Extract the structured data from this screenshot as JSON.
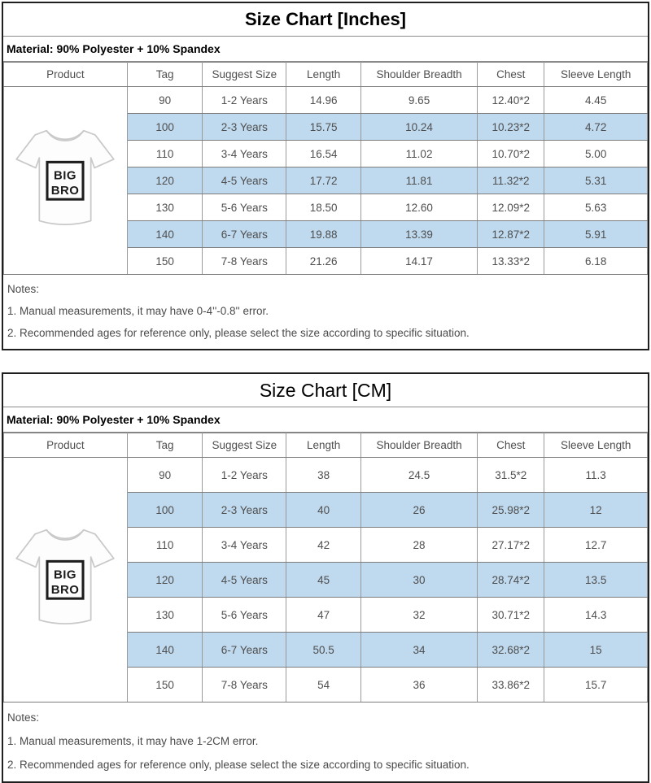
{
  "colors": {
    "row_highlight": "#BFD9EE",
    "grid_line": "#9a9a9a",
    "outer_border": "#1f1f1f",
    "table_text": "#4f4f4f"
  },
  "product_image": {
    "label_line1": "BIG",
    "label_line2": "BRO"
  },
  "charts": [
    {
      "title": "Size Chart [Inches]",
      "material": "Material: 90% Polyester + 10% Spandex",
      "columns": [
        "Product",
        "Tag",
        "Suggest Size",
        "Length",
        "Shoulder Breadth",
        "Chest",
        "Sleeve Length"
      ],
      "rows": [
        {
          "tag": "90",
          "suggest_size": "1-2 Years",
          "length": "14.96",
          "shoulder_breadth": "9.65",
          "chest": "12.40*2",
          "sleeve_length": "4.45",
          "highlight": false
        },
        {
          "tag": "100",
          "suggest_size": "2-3 Years",
          "length": "15.75",
          "shoulder_breadth": "10.24",
          "chest": "10.23*2",
          "sleeve_length": "4.72",
          "highlight": true
        },
        {
          "tag": "110",
          "suggest_size": "3-4 Years",
          "length": "16.54",
          "shoulder_breadth": "11.02",
          "chest": "10.70*2",
          "sleeve_length": "5.00",
          "highlight": false
        },
        {
          "tag": "120",
          "suggest_size": "4-5 Years",
          "length": "17.72",
          "shoulder_breadth": "11.81",
          "chest": "11.32*2",
          "sleeve_length": "5.31",
          "highlight": true
        },
        {
          "tag": "130",
          "suggest_size": "5-6 Years",
          "length": "18.50",
          "shoulder_breadth": "12.60",
          "chest": "12.09*2",
          "sleeve_length": "5.63",
          "highlight": false
        },
        {
          "tag": "140",
          "suggest_size": "6-7 Years",
          "length": "19.88",
          "shoulder_breadth": "13.39",
          "chest": "12.87*2",
          "sleeve_length": "5.91",
          "highlight": true
        },
        {
          "tag": "150",
          "suggest_size": "7-8 Years",
          "length": "21.26",
          "shoulder_breadth": "14.17",
          "chest": "13.33*2",
          "sleeve_length": "6.18",
          "highlight": false
        }
      ],
      "notes": [
        "Notes:",
        "1. Manual measurements, it may have 0-4''-0.8'' error.",
        "2. Recommended ages for reference only, please select the size according to specific situation."
      ]
    },
    {
      "title": "Size Chart [CM]",
      "material": "Material: 90% Polyester + 10% Spandex",
      "columns": [
        "Product",
        "Tag",
        "Suggest Size",
        "Length",
        "Shoulder Breadth",
        "Chest",
        "Sleeve Length"
      ],
      "rows": [
        {
          "tag": "90",
          "suggest_size": "1-2 Years",
          "length": "38",
          "shoulder_breadth": "24.5",
          "chest": "31.5*2",
          "sleeve_length": "11.3",
          "highlight": false
        },
        {
          "tag": "100",
          "suggest_size": "2-3 Years",
          "length": "40",
          "shoulder_breadth": "26",
          "chest": "25.98*2",
          "sleeve_length": "12",
          "highlight": true
        },
        {
          "tag": "110",
          "suggest_size": "3-4 Years",
          "length": "42",
          "shoulder_breadth": "28",
          "chest": "27.17*2",
          "sleeve_length": "12.7",
          "highlight": false
        },
        {
          "tag": "120",
          "suggest_size": "4-5 Years",
          "length": "45",
          "shoulder_breadth": "30",
          "chest": "28.74*2",
          "sleeve_length": "13.5",
          "highlight": true
        },
        {
          "tag": "130",
          "suggest_size": "5-6 Years",
          "length": "47",
          "shoulder_breadth": "32",
          "chest": "30.71*2",
          "sleeve_length": "14.3",
          "highlight": false
        },
        {
          "tag": "140",
          "suggest_size": "6-7 Years",
          "length": "50.5",
          "shoulder_breadth": "34",
          "chest": "32.68*2",
          "sleeve_length": "15",
          "highlight": true
        },
        {
          "tag": "150",
          "suggest_size": "7-8 Years",
          "length": "54",
          "shoulder_breadth": "36",
          "chest": "33.86*2",
          "sleeve_length": "15.7",
          "highlight": false
        }
      ],
      "notes": [
        "Notes:",
        "1. Manual measurements, it may have 1-2CM error.",
        "2. Recommended ages for reference only, please select the size according to specific situation."
      ]
    }
  ]
}
